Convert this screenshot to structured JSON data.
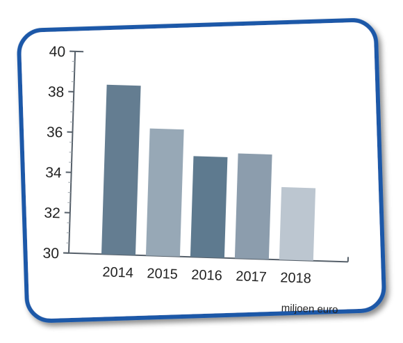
{
  "chart_data": {
    "type": "bar",
    "categories": [
      "2014",
      "2015",
      "2016",
      "2017",
      "2018"
    ],
    "values": [
      38.4,
      36.3,
      35.0,
      35.2,
      33.6
    ],
    "ylim": [
      30,
      40
    ],
    "yticks": [
      "30",
      "32",
      "34",
      "36",
      "38",
      "40"
    ],
    "unit_label": "miljoen euro",
    "grid": false,
    "bar_colors": [
      "#647d91",
      "#97a8b6",
      "#5e7a8f",
      "#8c9dad",
      "#bcc6d0"
    ],
    "frame_color": "#1d58a8",
    "axis_color": "#555f69"
  }
}
